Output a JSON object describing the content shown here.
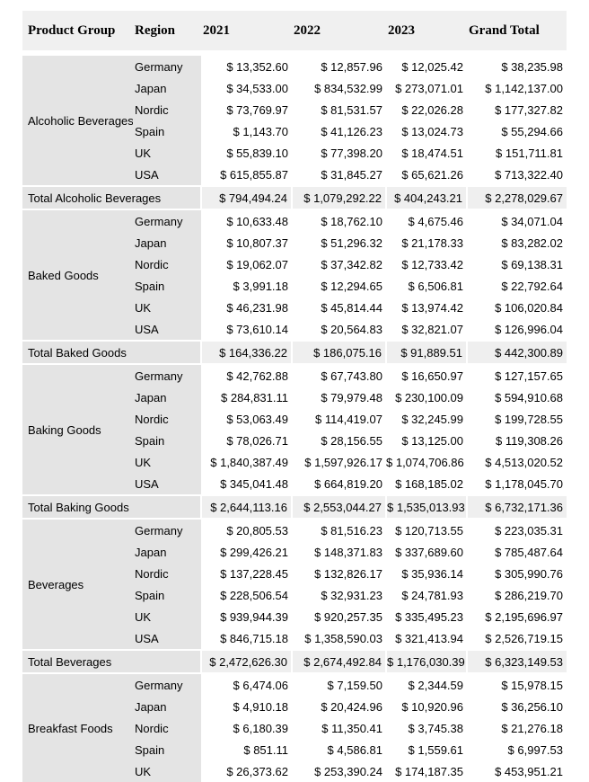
{
  "table": {
    "columns": [
      "Product Group",
      "Region",
      "2021",
      "2022",
      "2023",
      "Grand Total"
    ],
    "colors": {
      "header_bg": "#f0f0f0",
      "group_bg": "#e4e4e4",
      "total_bg": "#efefef",
      "row_bg": "#ffffff",
      "text": "#000000"
    },
    "groups": [
      {
        "name": "Alcoholic Beverages",
        "rows": [
          [
            "Germany",
            "$ 13,352.60",
            "$ 12,857.96",
            "$ 12,025.42",
            "$ 38,235.98"
          ],
          [
            "Japan",
            "$ 34,533.00",
            "$ 834,532.99",
            "$ 273,071.01",
            "$ 1,142,137.00"
          ],
          [
            "Nordic",
            "$ 73,769.97",
            "$ 81,531.57",
            "$ 22,026.28",
            "$ 177,327.82"
          ],
          [
            "Spain",
            "$ 1,143.70",
            "$ 41,126.23",
            "$ 13,024.73",
            "$ 55,294.66"
          ],
          [
            "UK",
            "$ 55,839.10",
            "$ 77,398.20",
            "$ 18,474.51",
            "$ 151,711.81"
          ],
          [
            "USA",
            "$ 615,855.87",
            "$ 31,845.27",
            "$ 65,621.26",
            "$ 713,322.40"
          ]
        ],
        "total": {
          "label": "Total Alcoholic Beverages",
          "values": [
            "$ 794,494.24",
            "$ 1,079,292.22",
            "$ 404,243.21",
            "$ 2,278,029.67"
          ]
        }
      },
      {
        "name": "Baked Goods",
        "rows": [
          [
            "Germany",
            "$ 10,633.48",
            "$ 18,762.10",
            "$ 4,675.46",
            "$ 34,071.04"
          ],
          [
            "Japan",
            "$ 10,807.37",
            "$ 51,296.32",
            "$ 21,178.33",
            "$ 83,282.02"
          ],
          [
            "Nordic",
            "$ 19,062.07",
            "$ 37,342.82",
            "$ 12,733.42",
            "$ 69,138.31"
          ],
          [
            "Spain",
            "$ 3,991.18",
            "$ 12,294.65",
            "$ 6,506.81",
            "$ 22,792.64"
          ],
          [
            "UK",
            "$ 46,231.98",
            "$ 45,814.44",
            "$ 13,974.42",
            "$ 106,020.84"
          ],
          [
            "USA",
            "$ 73,610.14",
            "$ 20,564.83",
            "$ 32,821.07",
            "$ 126,996.04"
          ]
        ],
        "total": {
          "label": "Total Baked Goods",
          "values": [
            "$ 164,336.22",
            "$ 186,075.16",
            "$ 91,889.51",
            "$ 442,300.89"
          ]
        }
      },
      {
        "name": "Baking Goods",
        "rows": [
          [
            "Germany",
            "$ 42,762.88",
            "$ 67,743.80",
            "$ 16,650.97",
            "$ 127,157.65"
          ],
          [
            "Japan",
            "$ 284,831.11",
            "$ 79,979.48",
            "$ 230,100.09",
            "$ 594,910.68"
          ],
          [
            "Nordic",
            "$ 53,063.49",
            "$ 114,419.07",
            "$ 32,245.99",
            "$ 199,728.55"
          ],
          [
            "Spain",
            "$ 78,026.71",
            "$ 28,156.55",
            "$ 13,125.00",
            "$ 119,308.26"
          ],
          [
            "UK",
            "$ 1,840,387.49",
            "$ 1,597,926.17",
            "$ 1,074,706.86",
            "$ 4,513,020.52"
          ],
          [
            "USA",
            "$ 345,041.48",
            "$ 664,819.20",
            "$ 168,185.02",
            "$ 1,178,045.70"
          ]
        ],
        "total": {
          "label": "Total Baking Goods",
          "values": [
            "$ 2,644,113.16",
            "$ 2,553,044.27",
            "$ 1,535,013.93",
            "$ 6,732,171.36"
          ]
        }
      },
      {
        "name": "Beverages",
        "rows": [
          [
            "Germany",
            "$ 20,805.53",
            "$ 81,516.23",
            "$ 120,713.55",
            "$ 223,035.31"
          ],
          [
            "Japan",
            "$ 299,426.21",
            "$ 148,371.83",
            "$ 337,689.60",
            "$ 785,487.64"
          ],
          [
            "Nordic",
            "$ 137,228.45",
            "$ 132,826.17",
            "$ 35,936.14",
            "$ 305,990.76"
          ],
          [
            "Spain",
            "$ 228,506.54",
            "$ 32,931.23",
            "$ 24,781.93",
            "$ 286,219.70"
          ],
          [
            "UK",
            "$ 939,944.39",
            "$ 920,257.35",
            "$ 335,495.23",
            "$ 2,195,696.97"
          ],
          [
            "USA",
            "$ 846,715.18",
            "$ 1,358,590.03",
            "$ 321,413.94",
            "$ 2,526,719.15"
          ]
        ],
        "total": {
          "label": "Total Beverages",
          "values": [
            "$ 2,472,626.30",
            "$ 2,674,492.84",
            "$ 1,176,030.39",
            "$ 6,323,149.53"
          ]
        }
      },
      {
        "name": "Breakfast Foods",
        "rows": [
          [
            "Germany",
            "$ 6,474.06",
            "$ 7,159.50",
            "$ 2,344.59",
            "$ 15,978.15"
          ],
          [
            "Japan",
            "$ 4,910.18",
            "$ 20,424.96",
            "$ 10,920.96",
            "$ 36,256.10"
          ],
          [
            "Nordic",
            "$ 6,180.39",
            "$ 11,350.41",
            "$ 3,745.38",
            "$ 21,276.18"
          ],
          [
            "Spain",
            "$ 851.11",
            "$ 4,586.81",
            "$ 1,559.61",
            "$ 6,997.53"
          ],
          [
            "UK",
            "$ 26,373.62",
            "$ 253,390.24",
            "$ 174,187.35",
            "$ 453,951.21"
          ]
        ],
        "total": null
      }
    ]
  }
}
